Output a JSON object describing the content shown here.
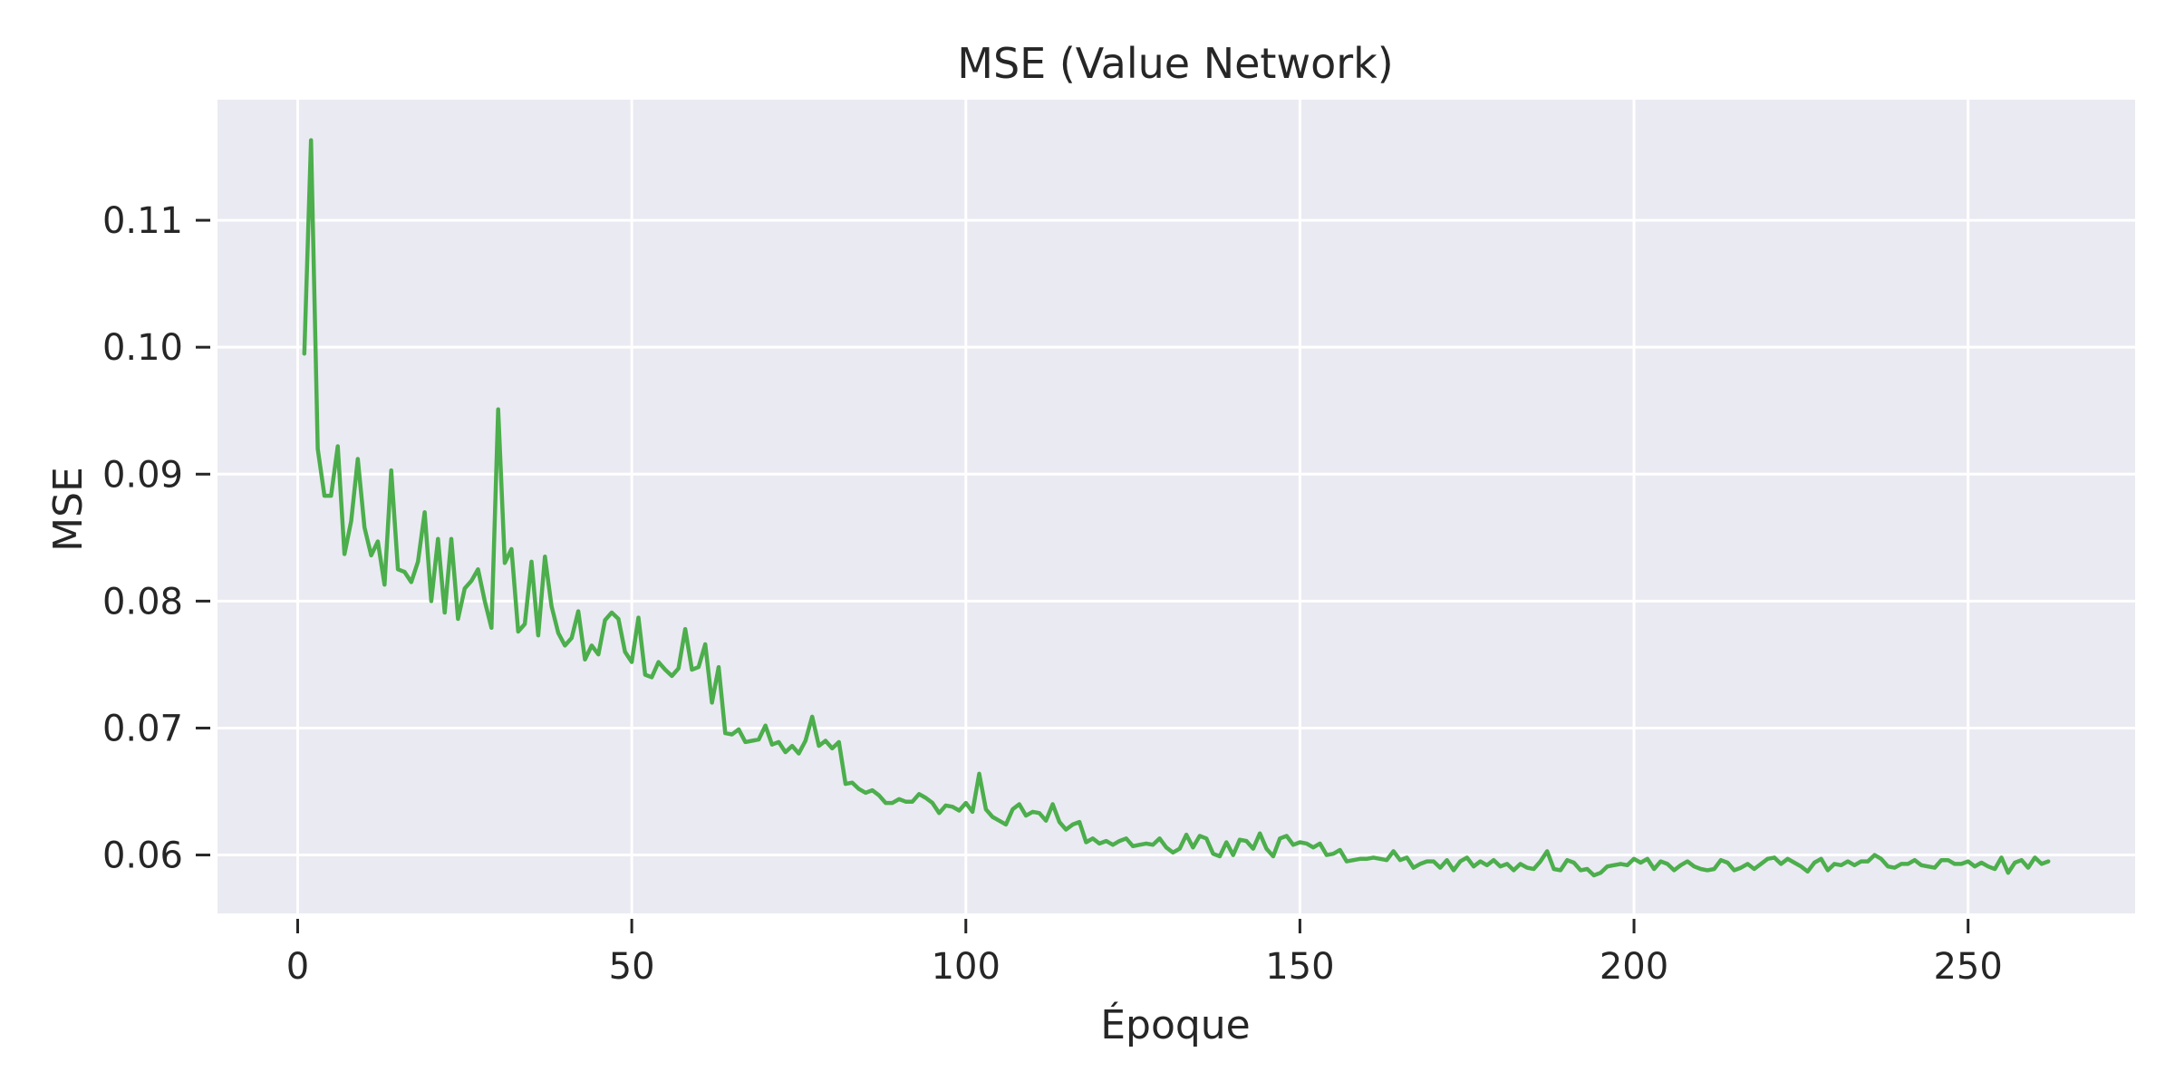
{
  "chart_data": {
    "type": "line",
    "title": "MSE (Value Network)",
    "xlabel": "Époque",
    "ylabel": "MSE",
    "xlim": [
      -12,
      275
    ],
    "ylim": [
      0.0554,
      0.1195
    ],
    "xticks": [
      0,
      50,
      100,
      150,
      200,
      250
    ],
    "xtick_labels": [
      "0",
      "50",
      "100",
      "150",
      "200",
      "250"
    ],
    "yticks": [
      0.06,
      0.07,
      0.08,
      0.09,
      0.1,
      0.11
    ],
    "ytick_labels": [
      "0.06",
      "0.07",
      "0.08",
      "0.09",
      "0.10",
      "0.11"
    ],
    "grid": true,
    "background_color": "#eaeaf2",
    "grid_color": "#ffffff",
    "series": [
      {
        "color": "#4cae4c",
        "x": [
          1,
          2,
          3,
          4,
          5,
          6,
          7,
          8,
          9,
          10,
          11,
          12,
          13,
          14,
          15,
          16,
          17,
          18,
          19,
          20,
          21,
          22,
          23,
          24,
          25,
          26,
          27,
          28,
          29,
          30,
          31,
          32,
          33,
          34,
          35,
          36,
          37,
          38,
          39,
          40,
          41,
          42,
          43,
          44,
          45,
          46,
          47,
          48,
          49,
          50,
          51,
          52,
          53,
          54,
          55,
          56,
          57,
          58,
          59,
          60,
          61,
          62,
          63,
          64,
          65,
          66,
          67,
          68,
          69,
          70,
          71,
          72,
          73,
          74,
          75,
          76,
          77,
          78,
          79,
          80,
          81,
          82,
          83,
          84,
          85,
          86,
          87,
          88,
          89,
          90,
          91,
          92,
          93,
          94,
          95,
          96,
          97,
          98,
          99,
          100,
          101,
          102,
          103,
          104,
          105,
          106,
          107,
          108,
          109,
          110,
          111,
          112,
          113,
          114,
          115,
          116,
          117,
          118,
          119,
          120,
          121,
          122,
          123,
          124,
          125,
          126,
          127,
          128,
          129,
          130,
          131,
          132,
          133,
          134,
          135,
          136,
          137,
          138,
          139,
          140,
          141,
          142,
          143,
          144,
          145,
          146,
          147,
          148,
          149,
          150,
          151,
          152,
          153,
          154,
          155,
          156,
          157,
          158,
          159,
          160,
          161,
          162,
          163,
          164,
          165,
          166,
          167,
          168,
          169,
          170,
          171,
          172,
          173,
          174,
          175,
          176,
          177,
          178,
          179,
          180,
          181,
          182,
          183,
          184,
          185,
          186,
          187,
          188,
          189,
          190,
          191,
          192,
          193,
          194,
          195,
          196,
          197,
          198,
          199,
          200,
          201,
          202,
          203,
          204,
          205,
          206,
          207,
          208,
          209,
          210,
          211,
          212,
          213,
          214,
          215,
          216,
          217,
          218,
          219,
          220,
          221,
          222,
          223,
          224,
          225,
          226,
          227,
          228,
          229,
          230,
          231,
          232,
          233,
          234,
          235,
          236,
          237,
          238,
          239,
          240,
          241,
          242,
          243,
          244,
          245,
          246,
          247,
          248,
          249,
          250,
          251,
          252,
          253,
          254,
          255,
          256,
          257,
          258,
          259,
          260,
          261,
          262
        ],
        "y": [
          0.0995,
          0.1163,
          0.092,
          0.0883,
          0.0883,
          0.0922,
          0.0837,
          0.0863,
          0.0912,
          0.0858,
          0.0836,
          0.0847,
          0.0813,
          0.0903,
          0.0825,
          0.0823,
          0.0815,
          0.0831,
          0.087,
          0.08,
          0.0849,
          0.0791,
          0.0849,
          0.0786,
          0.081,
          0.0816,
          0.0825,
          0.08,
          0.0779,
          0.0951,
          0.083,
          0.0841,
          0.0776,
          0.0782,
          0.0831,
          0.0773,
          0.0835,
          0.0796,
          0.0775,
          0.0765,
          0.0771,
          0.0792,
          0.0754,
          0.0765,
          0.0758,
          0.0785,
          0.0791,
          0.0786,
          0.076,
          0.0752,
          0.0787,
          0.0742,
          0.074,
          0.0752,
          0.0746,
          0.0741,
          0.0747,
          0.0778,
          0.0746,
          0.0748,
          0.0766,
          0.072,
          0.0748,
          0.0696,
          0.0695,
          0.0699,
          0.0689,
          0.069,
          0.0691,
          0.0702,
          0.0687,
          0.0689,
          0.0681,
          0.0686,
          0.068,
          0.069,
          0.0709,
          0.0686,
          0.069,
          0.0684,
          0.0689,
          0.0656,
          0.0657,
          0.0652,
          0.0649,
          0.0651,
          0.0647,
          0.0641,
          0.0641,
          0.0644,
          0.0642,
          0.0642,
          0.0648,
          0.0645,
          0.0641,
          0.0633,
          0.0639,
          0.0638,
          0.0635,
          0.0641,
          0.0634,
          0.0664,
          0.0636,
          0.063,
          0.0627,
          0.0624,
          0.0636,
          0.064,
          0.0631,
          0.0634,
          0.0633,
          0.0627,
          0.064,
          0.0626,
          0.062,
          0.0624,
          0.0626,
          0.061,
          0.0613,
          0.0609,
          0.0611,
          0.0608,
          0.0611,
          0.0613,
          0.0607,
          0.0608,
          0.0609,
          0.0608,
          0.0613,
          0.0606,
          0.0602,
          0.0605,
          0.0616,
          0.0606,
          0.0615,
          0.0613,
          0.0601,
          0.0599,
          0.061,
          0.06,
          0.0612,
          0.0611,
          0.0605,
          0.0617,
          0.0605,
          0.0599,
          0.0613,
          0.0615,
          0.0608,
          0.061,
          0.0609,
          0.0606,
          0.0609,
          0.06,
          0.0601,
          0.0604,
          0.0595,
          0.0596,
          0.0597,
          0.0597,
          0.0598,
          0.0597,
          0.0596,
          0.0603,
          0.0596,
          0.0598,
          0.059,
          0.0593,
          0.0595,
          0.0595,
          0.059,
          0.0596,
          0.0588,
          0.0595,
          0.0598,
          0.0591,
          0.0595,
          0.0592,
          0.0596,
          0.0591,
          0.0593,
          0.0588,
          0.0593,
          0.059,
          0.0589,
          0.0595,
          0.0603,
          0.0589,
          0.0588,
          0.0596,
          0.0594,
          0.0588,
          0.0589,
          0.0584,
          0.0586,
          0.0591,
          0.0592,
          0.0593,
          0.0592,
          0.0597,
          0.0594,
          0.0597,
          0.0589,
          0.0595,
          0.0593,
          0.0588,
          0.0592,
          0.0595,
          0.0591,
          0.0589,
          0.0588,
          0.0589,
          0.0596,
          0.0594,
          0.0588,
          0.059,
          0.0593,
          0.0589,
          0.0593,
          0.0597,
          0.0598,
          0.0593,
          0.0597,
          0.0594,
          0.0591,
          0.0587,
          0.0594,
          0.0597,
          0.0588,
          0.0593,
          0.0592,
          0.0595,
          0.0592,
          0.0595,
          0.0595,
          0.06,
          0.0597,
          0.0591,
          0.059,
          0.0593,
          0.0593,
          0.0596,
          0.0592,
          0.0591,
          0.059,
          0.0596,
          0.0596,
          0.0593,
          0.0593,
          0.0595,
          0.0591,
          0.0594,
          0.0591,
          0.0589,
          0.0598,
          0.0586,
          0.0594,
          0.0596,
          0.059,
          0.0598,
          0.0593,
          0.0595
        ]
      }
    ]
  }
}
